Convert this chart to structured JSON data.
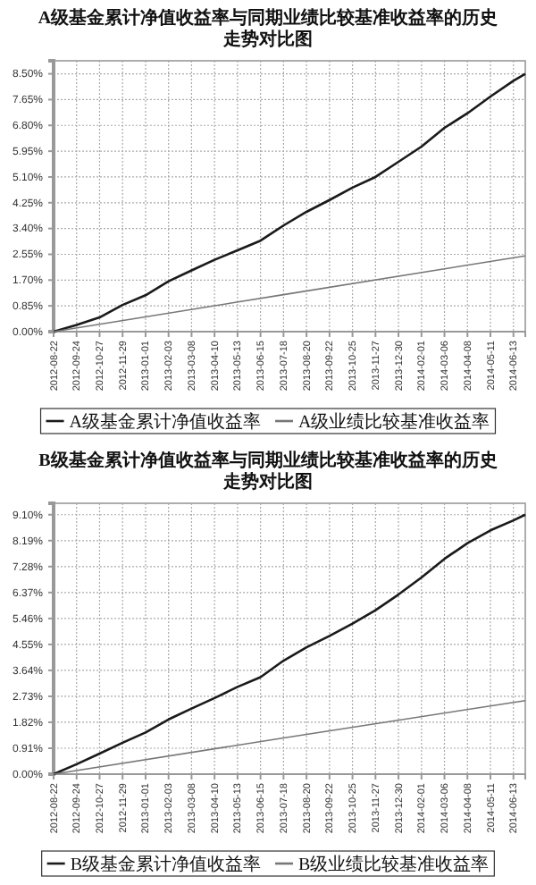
{
  "chart_data": [
    {
      "type": "line",
      "title": "A级基金累计净值收益率与同期业绩比较基准收益率的历史走势对比图",
      "grid": true,
      "legend": "bottom",
      "line_style": "solid",
      "marker": "none",
      "xlim": [
        "2012-08-22",
        "2014-06-30"
      ],
      "xticks": [
        "2012-08-22",
        "2012-09-24",
        "2012-10-27",
        "2012-11-29",
        "2013-01-01",
        "2013-02-03",
        "2013-03-08",
        "2013-04-10",
        "2013-05-13",
        "2013-06-15",
        "2013-07-18",
        "2013-08-20",
        "2013-09-22",
        "2013-10-25",
        "2013-11-27",
        "2013-12-30",
        "2014-02-01",
        "2014-03-06",
        "2014-04-08",
        "2014-05-11",
        "2014-06-13"
      ],
      "ylim": [
        0,
        8.93
      ],
      "yticks": [
        {
          "value": 0,
          "label": "0.00%"
        },
        {
          "value": 0.85,
          "label": "0.85%"
        },
        {
          "value": 1.7,
          "label": "1.70%"
        },
        {
          "value": 2.55,
          "label": "2.55%"
        },
        {
          "value": 3.4,
          "label": "3.40%"
        },
        {
          "value": 4.25,
          "label": "4.25%"
        },
        {
          "value": 5.1,
          "label": "5.10%"
        },
        {
          "value": 5.95,
          "label": "5.95%"
        },
        {
          "value": 6.8,
          "label": "6.80%"
        },
        {
          "value": 7.65,
          "label": "7.65%"
        },
        {
          "value": 8.5,
          "label": "8.50%"
        }
      ],
      "series": [
        {
          "name": "A级基金累计净值收益率",
          "color": "#1a1a1a",
          "x": [
            "2012-08-22",
            "2012-09-24",
            "2012-10-27",
            "2012-11-29",
            "2013-01-01",
            "2013-02-03",
            "2013-03-08",
            "2013-04-10",
            "2013-05-13",
            "2013-06-15",
            "2013-07-18",
            "2013-08-20",
            "2013-09-22",
            "2013-10-25",
            "2013-11-27",
            "2013-12-30",
            "2014-02-01",
            "2014-03-06",
            "2014-04-08",
            "2014-05-11",
            "2014-06-13",
            "2014-06-30"
          ],
          "values": [
            0,
            0.22,
            0.47,
            0.88,
            1.2,
            1.66,
            2.02,
            2.37,
            2.68,
            3.0,
            3.5,
            3.95,
            4.34,
            4.75,
            5.1,
            5.6,
            6.1,
            6.72,
            7.2,
            7.75,
            8.27,
            8.5
          ]
        },
        {
          "name": "A级业绩比较基准收益率",
          "color": "#777777",
          "x": [
            "2012-08-22",
            "2013-07-18",
            "2014-06-30"
          ],
          "values": [
            0,
            1.22,
            2.5
          ]
        }
      ]
    },
    {
      "type": "line",
      "title": "B级基金累计净值收益率与同期业绩比较基准收益率的历史走势对比图",
      "grid": true,
      "legend": "bottom",
      "line_style": "solid",
      "marker": "none",
      "xlim": [
        "2012-08-22",
        "2014-06-30"
      ],
      "xticks": [
        "2012-08-22",
        "2012-09-24",
        "2012-10-27",
        "2012-11-29",
        "2013-01-01",
        "2013-02-03",
        "2013-03-08",
        "2013-04-10",
        "2013-05-13",
        "2013-06-15",
        "2013-07-18",
        "2013-08-20",
        "2013-09-22",
        "2013-10-25",
        "2013-11-27",
        "2013-12-30",
        "2014-02-01",
        "2014-03-06",
        "2014-04-08",
        "2014-05-11",
        "2014-06-13"
      ],
      "ylim": [
        0,
        9.5
      ],
      "yticks": [
        {
          "value": 0,
          "label": "0.00%"
        },
        {
          "value": 0.91,
          "label": "0.91%"
        },
        {
          "value": 1.82,
          "label": "1.82%"
        },
        {
          "value": 2.73,
          "label": "2.73%"
        },
        {
          "value": 3.64,
          "label": "3.64%"
        },
        {
          "value": 4.55,
          "label": "4.55%"
        },
        {
          "value": 5.46,
          "label": "5.46%"
        },
        {
          "value": 6.37,
          "label": "6.37%"
        },
        {
          "value": 7.28,
          "label": "7.28%"
        },
        {
          "value": 8.19,
          "label": "8.19%"
        },
        {
          "value": 9.1,
          "label": "9.10%"
        }
      ],
      "series": [
        {
          "name": "B级基金累计净值收益率",
          "color": "#1a1a1a",
          "x": [
            "2012-08-22",
            "2012-09-24",
            "2012-10-27",
            "2012-11-29",
            "2013-01-01",
            "2013-02-03",
            "2013-03-08",
            "2013-04-10",
            "2013-05-13",
            "2013-06-15",
            "2013-07-18",
            "2013-08-20",
            "2013-09-22",
            "2013-10-25",
            "2013-11-27",
            "2013-12-30",
            "2014-02-01",
            "2014-03-06",
            "2014-04-08",
            "2014-05-11",
            "2014-06-13",
            "2014-06-30"
          ],
          "values": [
            0,
            0.35,
            0.72,
            1.1,
            1.46,
            1.92,
            2.3,
            2.67,
            3.06,
            3.4,
            3.98,
            4.45,
            4.85,
            5.28,
            5.75,
            6.3,
            6.9,
            7.55,
            8.1,
            8.55,
            8.9,
            9.1
          ]
        },
        {
          "name": "B级业绩比较基准收益率",
          "color": "#777777",
          "x": [
            "2012-08-22",
            "2013-07-18",
            "2014-06-30"
          ],
          "values": [
            0,
            1.27,
            2.58
          ]
        }
      ]
    }
  ]
}
